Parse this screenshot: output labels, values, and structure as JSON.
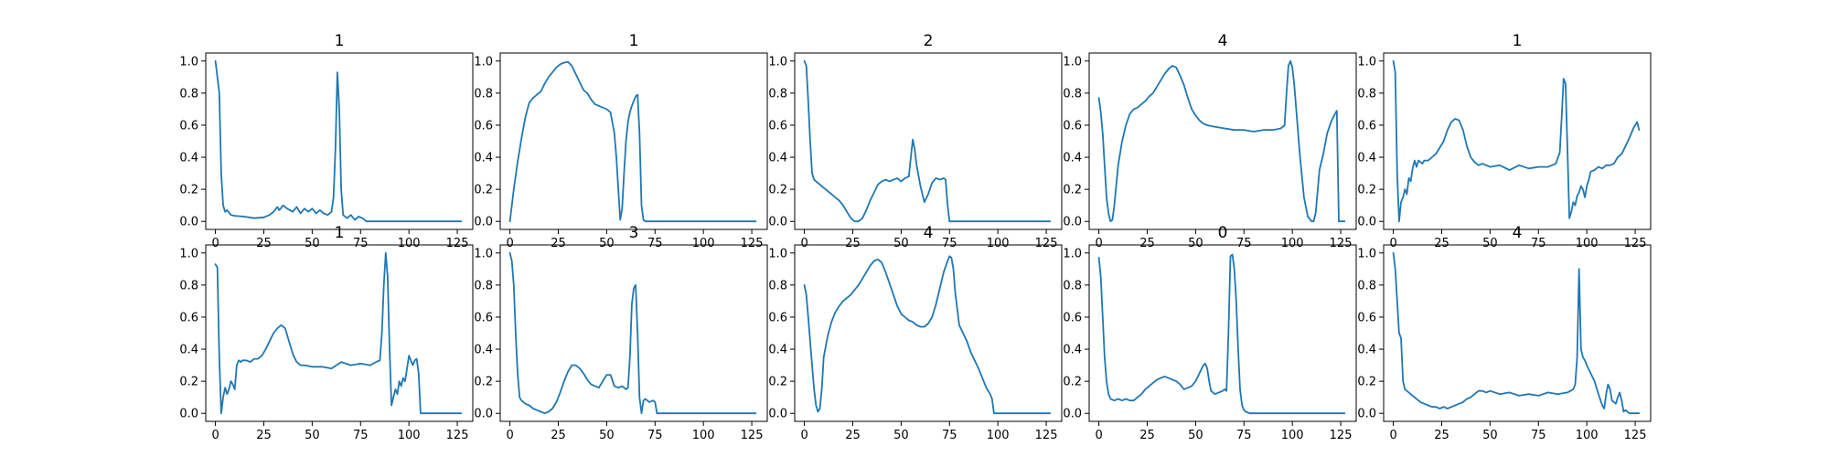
{
  "figure": {
    "line_color": "#1f77b4",
    "shared_xlim": [
      -5,
      133
    ],
    "shared_ylim": [
      -0.05,
      1.05
    ],
    "xticks": [
      0,
      25,
      50,
      75,
      100,
      125
    ],
    "yticks": [
      0.0,
      0.2,
      0.4,
      0.6,
      0.8,
      1.0
    ],
    "ytick_labels": [
      "0.0",
      "0.2",
      "0.4",
      "0.6",
      "0.8",
      "1.0"
    ]
  },
  "chart_data": [
    {
      "type": "line",
      "title": "1",
      "x": [
        0,
        2,
        3,
        4,
        5,
        6,
        8,
        10,
        15,
        20,
        25,
        28,
        30,
        32,
        33,
        35,
        37,
        40,
        42,
        44,
        46,
        48,
        50,
        52,
        54,
        56,
        58,
        60,
        61,
        62,
        63,
        64,
        65,
        66,
        68,
        70,
        72,
        74,
        76,
        78,
        80,
        90,
        100,
        110,
        120,
        127
      ],
      "y": [
        1.0,
        0.8,
        0.3,
        0.1,
        0.06,
        0.07,
        0.04,
        0.035,
        0.03,
        0.02,
        0.025,
        0.04,
        0.06,
        0.09,
        0.07,
        0.1,
        0.08,
        0.06,
        0.09,
        0.05,
        0.08,
        0.06,
        0.08,
        0.05,
        0.07,
        0.05,
        0.04,
        0.06,
        0.15,
        0.45,
        0.93,
        0.7,
        0.2,
        0.04,
        0.02,
        0.04,
        0.01,
        0.03,
        0.02,
        0.0,
        0.0,
        0.0,
        0.0,
        0.0,
        0.0,
        0.0
      ]
    },
    {
      "type": "line",
      "title": "1",
      "x": [
        0,
        1,
        2,
        4,
        6,
        8,
        10,
        12,
        14,
        16,
        18,
        20,
        22,
        24,
        26,
        28,
        30,
        32,
        34,
        36,
        38,
        40,
        42,
        44,
        46,
        48,
        50,
        52,
        54,
        55,
        56,
        57,
        58,
        59,
        60,
        61,
        62,
        63,
        64,
        65,
        66,
        67,
        68,
        69,
        70,
        71,
        72,
        80,
        90,
        100,
        110,
        120,
        127
      ],
      "y": [
        0.0,
        0.1,
        0.2,
        0.37,
        0.52,
        0.65,
        0.74,
        0.77,
        0.79,
        0.81,
        0.86,
        0.9,
        0.93,
        0.96,
        0.98,
        0.99,
        0.995,
        0.97,
        0.92,
        0.87,
        0.82,
        0.8,
        0.76,
        0.73,
        0.72,
        0.71,
        0.7,
        0.68,
        0.55,
        0.4,
        0.2,
        0.01,
        0.08,
        0.3,
        0.5,
        0.62,
        0.68,
        0.72,
        0.75,
        0.78,
        0.79,
        0.55,
        0.1,
        0.01,
        0.0,
        0.0,
        0.0,
        0.0,
        0.0,
        0.0,
        0.0,
        0.0,
        0.0
      ]
    },
    {
      "type": "line",
      "title": "2",
      "x": [
        0,
        1,
        2,
        3,
        4,
        5,
        6,
        8,
        10,
        12,
        14,
        16,
        18,
        20,
        22,
        24,
        26,
        28,
        30,
        32,
        34,
        36,
        38,
        40,
        42,
        44,
        46,
        48,
        50,
        52,
        54,
        55,
        56,
        57,
        58,
        60,
        62,
        64,
        66,
        68,
        70,
        72,
        73,
        74,
        75,
        80,
        90,
        100,
        110,
        120,
        127
      ],
      "y": [
        1.0,
        0.97,
        0.75,
        0.5,
        0.3,
        0.26,
        0.25,
        0.23,
        0.21,
        0.19,
        0.17,
        0.15,
        0.13,
        0.1,
        0.06,
        0.02,
        0.0,
        0.0,
        0.02,
        0.07,
        0.13,
        0.18,
        0.23,
        0.25,
        0.26,
        0.25,
        0.26,
        0.27,
        0.25,
        0.27,
        0.28,
        0.4,
        0.51,
        0.45,
        0.35,
        0.22,
        0.12,
        0.17,
        0.24,
        0.27,
        0.26,
        0.27,
        0.26,
        0.1,
        0.0,
        0.0,
        0.0,
        0.0,
        0.0,
        0.0,
        0.0
      ]
    },
    {
      "type": "line",
      "title": "4",
      "x": [
        0,
        1,
        2,
        3,
        4,
        5,
        6,
        7,
        8,
        10,
        12,
        14,
        16,
        18,
        20,
        22,
        24,
        26,
        28,
        30,
        32,
        34,
        36,
        38,
        40,
        42,
        44,
        46,
        48,
        50,
        52,
        54,
        56,
        60,
        65,
        70,
        75,
        80,
        85,
        90,
        94,
        96,
        97,
        98,
        99,
        100,
        101,
        102,
        104,
        106,
        108,
        110,
        111,
        112,
        113,
        114,
        116,
        118,
        120,
        122,
        123,
        124,
        125,
        127
      ],
      "y": [
        0.77,
        0.68,
        0.55,
        0.35,
        0.15,
        0.05,
        0.0,
        0.01,
        0.1,
        0.35,
        0.5,
        0.6,
        0.67,
        0.7,
        0.71,
        0.73,
        0.75,
        0.78,
        0.8,
        0.84,
        0.88,
        0.92,
        0.95,
        0.97,
        0.96,
        0.91,
        0.85,
        0.77,
        0.7,
        0.66,
        0.63,
        0.61,
        0.6,
        0.59,
        0.58,
        0.57,
        0.57,
        0.56,
        0.57,
        0.57,
        0.58,
        0.6,
        0.8,
        0.97,
        1.0,
        0.96,
        0.85,
        0.7,
        0.4,
        0.15,
        0.03,
        0.0,
        0.0,
        0.05,
        0.18,
        0.32,
        0.42,
        0.55,
        0.62,
        0.67,
        0.69,
        0.0,
        0.0,
        0.0
      ]
    },
    {
      "type": "line",
      "title": "1",
      "x": [
        0,
        1,
        2,
        3,
        4,
        5,
        6,
        7,
        8,
        9,
        10,
        11,
        12,
        13,
        14,
        15,
        16,
        18,
        20,
        22,
        24,
        26,
        28,
        30,
        32,
        34,
        36,
        38,
        40,
        42,
        44,
        46,
        50,
        55,
        60,
        65,
        70,
        75,
        80,
        84,
        86,
        87,
        88,
        89,
        90,
        91,
        92,
        93,
        94,
        95,
        96,
        97,
        98,
        99,
        100,
        101,
        102,
        104,
        106,
        108,
        110,
        112,
        114,
        116,
        118,
        120,
        122,
        124,
        126,
        127
      ],
      "y": [
        1.0,
        0.93,
        0.3,
        0.0,
        0.12,
        0.15,
        0.2,
        0.17,
        0.27,
        0.25,
        0.33,
        0.38,
        0.34,
        0.38,
        0.37,
        0.36,
        0.38,
        0.38,
        0.4,
        0.42,
        0.46,
        0.5,
        0.57,
        0.62,
        0.64,
        0.63,
        0.57,
        0.47,
        0.4,
        0.37,
        0.35,
        0.36,
        0.34,
        0.35,
        0.32,
        0.35,
        0.33,
        0.34,
        0.34,
        0.36,
        0.43,
        0.65,
        0.89,
        0.86,
        0.45,
        0.02,
        0.06,
        0.12,
        0.1,
        0.16,
        0.18,
        0.22,
        0.2,
        0.15,
        0.22,
        0.26,
        0.31,
        0.32,
        0.34,
        0.33,
        0.35,
        0.35,
        0.36,
        0.4,
        0.42,
        0.47,
        0.52,
        0.58,
        0.62,
        0.57
      ]
    },
    {
      "type": "line",
      "title": "1",
      "x": [
        0,
        1,
        2,
        3,
        4,
        5,
        6,
        7,
        8,
        9,
        10,
        11,
        12,
        13,
        14,
        16,
        18,
        20,
        22,
        24,
        26,
        28,
        30,
        32,
        34,
        36,
        38,
        40,
        42,
        44,
        46,
        50,
        55,
        60,
        65,
        70,
        75,
        80,
        83,
        85,
        86,
        87,
        88,
        89,
        90,
        91,
        92,
        93,
        94,
        95,
        96,
        97,
        98,
        99,
        100,
        101,
        102,
        103,
        104,
        105,
        106,
        110,
        120,
        127
      ],
      "y": [
        0.93,
        0.91,
        0.35,
        0.0,
        0.1,
        0.16,
        0.12,
        0.15,
        0.2,
        0.18,
        0.15,
        0.3,
        0.33,
        0.32,
        0.33,
        0.33,
        0.32,
        0.34,
        0.34,
        0.36,
        0.4,
        0.45,
        0.5,
        0.53,
        0.55,
        0.53,
        0.45,
        0.37,
        0.32,
        0.3,
        0.3,
        0.29,
        0.29,
        0.28,
        0.32,
        0.3,
        0.31,
        0.3,
        0.32,
        0.33,
        0.5,
        0.8,
        1.0,
        0.85,
        0.4,
        0.05,
        0.1,
        0.15,
        0.12,
        0.2,
        0.17,
        0.22,
        0.2,
        0.28,
        0.36,
        0.33,
        0.3,
        0.33,
        0.34,
        0.25,
        0.0,
        0.0,
        0.0,
        0.0
      ]
    },
    {
      "type": "line",
      "title": "3",
      "x": [
        0,
        1,
        2,
        3,
        4,
        5,
        6,
        8,
        10,
        12,
        14,
        16,
        18,
        20,
        22,
        24,
        26,
        28,
        30,
        32,
        34,
        36,
        38,
        40,
        42,
        44,
        46,
        48,
        50,
        52,
        54,
        56,
        58,
        60,
        61,
        62,
        63,
        64,
        65,
        66,
        67,
        68,
        69,
        70,
        72,
        74,
        75,
        76,
        80,
        90,
        100,
        110,
        120,
        127
      ],
      "y": [
        1.0,
        0.95,
        0.8,
        0.5,
        0.25,
        0.1,
        0.08,
        0.06,
        0.05,
        0.03,
        0.02,
        0.01,
        0.0,
        0.01,
        0.03,
        0.07,
        0.13,
        0.2,
        0.26,
        0.3,
        0.3,
        0.28,
        0.25,
        0.21,
        0.18,
        0.17,
        0.16,
        0.2,
        0.24,
        0.24,
        0.17,
        0.16,
        0.17,
        0.15,
        0.16,
        0.35,
        0.68,
        0.78,
        0.8,
        0.5,
        0.1,
        0.0,
        0.08,
        0.09,
        0.07,
        0.08,
        0.07,
        0.0,
        0.0,
        0.0,
        0.0,
        0.0,
        0.0,
        0.0
      ]
    },
    {
      "type": "line",
      "title": "4",
      "x": [
        0,
        1,
        2,
        3,
        4,
        5,
        6,
        7,
        8,
        9,
        10,
        12,
        14,
        16,
        18,
        20,
        22,
        24,
        26,
        28,
        30,
        32,
        34,
        36,
        38,
        40,
        42,
        44,
        46,
        48,
        50,
        52,
        54,
        56,
        58,
        60,
        62,
        64,
        66,
        68,
        70,
        72,
        74,
        75,
        76,
        77,
        78,
        80,
        82,
        84,
        86,
        88,
        90,
        92,
        94,
        96,
        97,
        98,
        100,
        110,
        120,
        127
      ],
      "y": [
        0.8,
        0.74,
        0.6,
        0.45,
        0.3,
        0.15,
        0.05,
        0.01,
        0.03,
        0.15,
        0.35,
        0.48,
        0.57,
        0.63,
        0.67,
        0.7,
        0.72,
        0.74,
        0.77,
        0.8,
        0.84,
        0.88,
        0.92,
        0.95,
        0.96,
        0.94,
        0.88,
        0.81,
        0.74,
        0.67,
        0.62,
        0.6,
        0.58,
        0.57,
        0.55,
        0.54,
        0.54,
        0.56,
        0.6,
        0.68,
        0.78,
        0.88,
        0.95,
        0.98,
        0.97,
        0.9,
        0.75,
        0.55,
        0.5,
        0.45,
        0.38,
        0.33,
        0.28,
        0.22,
        0.16,
        0.12,
        0.09,
        0.0,
        0.0,
        0.0,
        0.0,
        0.0
      ]
    },
    {
      "type": "line",
      "title": "0",
      "x": [
        0,
        1,
        2,
        3,
        4,
        5,
        6,
        8,
        10,
        12,
        14,
        16,
        18,
        20,
        22,
        24,
        26,
        28,
        30,
        32,
        34,
        36,
        38,
        40,
        42,
        44,
        46,
        48,
        50,
        52,
        54,
        55,
        56,
        57,
        58,
        60,
        62,
        64,
        65,
        66,
        67,
        68,
        69,
        70,
        71,
        72,
        73,
        74,
        75,
        76,
        78,
        80,
        90,
        100,
        110,
        120,
        127
      ],
      "y": [
        0.97,
        0.85,
        0.6,
        0.35,
        0.2,
        0.12,
        0.09,
        0.08,
        0.09,
        0.08,
        0.09,
        0.08,
        0.08,
        0.1,
        0.12,
        0.15,
        0.17,
        0.19,
        0.21,
        0.22,
        0.23,
        0.22,
        0.21,
        0.2,
        0.18,
        0.15,
        0.16,
        0.17,
        0.2,
        0.25,
        0.3,
        0.31,
        0.28,
        0.2,
        0.14,
        0.12,
        0.13,
        0.14,
        0.15,
        0.14,
        0.5,
        0.98,
        0.99,
        0.9,
        0.7,
        0.4,
        0.15,
        0.05,
        0.02,
        0.01,
        0.0,
        0.0,
        0.0,
        0.0,
        0.0,
        0.0,
        0.0
      ]
    },
    {
      "type": "line",
      "title": "4",
      "x": [
        0,
        1,
        2,
        3,
        4,
        5,
        6,
        8,
        10,
        12,
        14,
        16,
        18,
        20,
        22,
        24,
        26,
        28,
        30,
        32,
        34,
        36,
        38,
        40,
        42,
        44,
        46,
        48,
        50,
        55,
        60,
        65,
        70,
        75,
        80,
        85,
        90,
        93,
        94,
        95,
        96,
        97,
        98,
        99,
        100,
        102,
        104,
        106,
        108,
        109,
        110,
        111,
        112,
        113,
        114,
        115,
        116,
        117,
        118,
        119,
        120,
        122,
        124,
        126,
        127
      ],
      "y": [
        1.0,
        0.9,
        0.7,
        0.5,
        0.47,
        0.2,
        0.15,
        0.13,
        0.11,
        0.09,
        0.07,
        0.06,
        0.05,
        0.04,
        0.04,
        0.03,
        0.04,
        0.03,
        0.04,
        0.05,
        0.06,
        0.07,
        0.09,
        0.1,
        0.12,
        0.14,
        0.14,
        0.13,
        0.14,
        0.12,
        0.13,
        0.11,
        0.12,
        0.11,
        0.13,
        0.12,
        0.13,
        0.15,
        0.18,
        0.35,
        0.9,
        0.4,
        0.35,
        0.33,
        0.3,
        0.25,
        0.2,
        0.12,
        0.05,
        0.03,
        0.12,
        0.18,
        0.15,
        0.08,
        0.07,
        0.06,
        0.1,
        0.13,
        0.08,
        0.01,
        0.02,
        0.0,
        0.0,
        0.0,
        0.0
      ]
    }
  ]
}
